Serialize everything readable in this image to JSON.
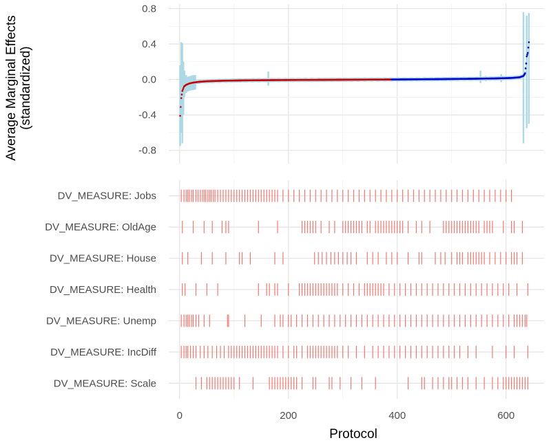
{
  "chart_data": [
    {
      "type": "scatter",
      "panel": "top",
      "title": "",
      "xlabel": "",
      "ylabel": "Average Marginal Effects",
      "ylabel_line2": "(standardized)",
      "ylim": [
        -0.95,
        0.85
      ],
      "y_ticks": [
        -0.8,
        -0.4,
        0.0,
        0.4,
        0.8
      ],
      "y_tick_labels": [
        "-0.8",
        "-0.4",
        "0.0",
        "0.4",
        "0.8"
      ],
      "grid": true,
      "series": [
        {
          "color_negative": "#cc0000",
          "color_positive": "#0000cc",
          "errorbar_color": "#add8e6",
          "curve": [
            [
              1,
              -0.41
            ],
            [
              2,
              -0.31
            ],
            [
              3,
              -0.21
            ],
            [
              5,
              -0.13
            ],
            [
              8,
              -0.08
            ],
            [
              12,
              -0.06
            ],
            [
              18,
              -0.045
            ],
            [
              25,
              -0.035
            ],
            [
              35,
              -0.027
            ],
            [
              50,
              -0.02
            ],
            [
              80,
              -0.014
            ],
            [
              120,
              -0.01
            ],
            [
              170,
              -0.007
            ],
            [
              230,
              -0.005
            ],
            [
              300,
              -0.003
            ],
            [
              360,
              -0.001
            ],
            [
              420,
              0.001
            ],
            [
              480,
              0.004
            ],
            [
              540,
              0.008
            ],
            [
              580,
              0.012
            ],
            [
              610,
              0.017
            ],
            [
              625,
              0.025
            ],
            [
              632,
              0.04
            ],
            [
              635,
              0.07
            ],
            [
              637,
              0.18
            ],
            [
              638,
              0.26
            ],
            [
              640,
              0.3
            ],
            [
              642,
              0.42
            ]
          ],
          "error_spikes": [
            [
              1,
              -0.75,
              0.16
            ],
            [
              3,
              -0.6,
              0.42
            ],
            [
              5,
              -0.72,
              0.41
            ],
            [
              7,
              -0.4,
              0.2
            ],
            [
              9,
              -0.2,
              0.1
            ],
            [
              12,
              -0.15,
              0.05
            ],
            [
              18,
              -0.1,
              0.02
            ],
            [
              28,
              -0.06,
              0.01
            ],
            [
              163,
              -0.07,
              0.09
            ],
            [
              553,
              -0.04,
              0.1
            ],
            [
              563,
              -0.02,
              0.04
            ],
            [
              591,
              -0.03,
              0.06
            ],
            [
              632,
              -0.72,
              0.76
            ],
            [
              638,
              -0.55,
              0.72
            ],
            [
              642,
              -0.5,
              0.75
            ]
          ]
        }
      ]
    },
    {
      "type": "rug",
      "panel": "bottom",
      "xlabel": "Protocol",
      "xlim": [
        -20,
        670
      ],
      "x_ticks": [
        0,
        200,
        400,
        600
      ],
      "x_tick_labels": [
        "0",
        "200",
        "400",
        "600"
      ],
      "mark_color": "#f8766d",
      "categories": [
        "DV_MEASURE: Jobs",
        "DV_MEASURE: OldAge",
        "DV_MEASURE: House",
        "DV_MEASURE: Health",
        "DV_MEASURE: Unemp",
        "DV_MEASURE: IncDiff",
        "DV_MEASURE: Scale"
      ],
      "rows": [
        {
          "category": "DV_MEASURE: Jobs",
          "x": [
            3,
            8,
            12,
            15,
            18,
            22,
            25,
            30,
            34,
            38,
            42,
            45,
            48,
            52,
            55,
            58,
            62,
            65,
            70,
            75,
            80,
            85,
            90,
            95,
            100,
            105,
            110,
            115,
            120,
            125,
            130,
            135,
            140,
            145,
            150,
            155,
            160,
            165,
            170,
            175,
            180,
            190,
            200,
            210,
            220,
            230,
            240,
            250,
            260,
            270,
            280,
            290,
            300,
            310,
            320,
            330,
            340,
            350,
            360,
            370,
            380,
            390,
            400,
            410,
            420,
            430,
            440,
            450,
            460,
            470,
            480,
            490,
            500,
            510,
            520,
            530,
            540,
            550,
            560,
            570,
            580,
            590,
            600,
            610
          ]
        },
        {
          "category": "DV_MEASURE: OldAge",
          "x": [
            5,
            25,
            45,
            60,
            78,
            85,
            90,
            145,
            180,
            225,
            230,
            235,
            240,
            245,
            250,
            260,
            275,
            285,
            300,
            305,
            310,
            315,
            320,
            325,
            330,
            335,
            345,
            350,
            360,
            365,
            370,
            375,
            380,
            385,
            390,
            395,
            400,
            405,
            410,
            420,
            435,
            445,
            460,
            485,
            490,
            495,
            500,
            505,
            510,
            515,
            520,
            525,
            530,
            535,
            540,
            545,
            550,
            560,
            565,
            570,
            575,
            595,
            610,
            615,
            630
          ]
        },
        {
          "category": "DV_MEASURE: House",
          "x": [
            5,
            15,
            40,
            60,
            85,
            110,
            115,
            130,
            175,
            190,
            248,
            255,
            262,
            270,
            278,
            285,
            292,
            300,
            308,
            315,
            325,
            345,
            355,
            365,
            380,
            390,
            400,
            420,
            440,
            445,
            470,
            480,
            488,
            500,
            510,
            515,
            520,
            530,
            535,
            540,
            545,
            550,
            555,
            560,
            570,
            580,
            590,
            600,
            610,
            615,
            620,
            630
          ]
        },
        {
          "category": "DV_MEASURE: Health",
          "x": [
            5,
            10,
            30,
            50,
            70,
            145,
            160,
            165,
            175,
            180,
            200,
            220,
            225,
            230,
            235,
            240,
            245,
            250,
            255,
            260,
            265,
            270,
            275,
            280,
            285,
            290,
            300,
            310,
            320,
            330,
            340,
            345,
            350,
            355,
            360,
            365,
            370,
            375,
            385,
            395,
            405,
            415,
            425,
            435,
            445,
            455,
            465,
            475,
            485,
            495,
            505,
            515,
            525,
            535,
            545,
            555,
            565,
            575,
            585,
            595,
            605,
            620,
            640
          ]
        },
        {
          "category": "DV_MEASURE: Unemp",
          "x": [
            3,
            8,
            12,
            15,
            18,
            22,
            25,
            30,
            35,
            45,
            55,
            88,
            90,
            120,
            150,
            175,
            185,
            190,
            200,
            205,
            215,
            225,
            235,
            245,
            255,
            265,
            275,
            285,
            295,
            305,
            315,
            325,
            335,
            345,
            355,
            365,
            375,
            385,
            395,
            405,
            415,
            425,
            435,
            445,
            455,
            465,
            475,
            485,
            495,
            505,
            515,
            525,
            535,
            545,
            555,
            565,
            575,
            585,
            595,
            605,
            615,
            620,
            625,
            630,
            635,
            638
          ]
        },
        {
          "category": "DV_MEASURE: IncDiff",
          "x": [
            3,
            8,
            12,
            15,
            20,
            25,
            30,
            38,
            45,
            52,
            60,
            68,
            75,
            82,
            90,
            95,
            100,
            105,
            110,
            115,
            120,
            125,
            130,
            135,
            140,
            145,
            150,
            155,
            160,
            165,
            170,
            175,
            180,
            190,
            200,
            210,
            215,
            225,
            235,
            240,
            245,
            250,
            255,
            260,
            265,
            270,
            275,
            280,
            285,
            290,
            300,
            310,
            325,
            340,
            355,
            365,
            375,
            385,
            395,
            405,
            415,
            425,
            435,
            445,
            455,
            465,
            475,
            485,
            495,
            505,
            515,
            530,
            545,
            575,
            600,
            615,
            640
          ]
        },
        {
          "category": "DV_MEASURE: Scale",
          "x": [
            30,
            40,
            50,
            55,
            60,
            65,
            70,
            75,
            80,
            85,
            90,
            95,
            100,
            110,
            135,
            165,
            170,
            175,
            180,
            185,
            190,
            195,
            200,
            205,
            210,
            215,
            225,
            245,
            250,
            275,
            280,
            295,
            315,
            335,
            360,
            420,
            445,
            450,
            465,
            475,
            485,
            495,
            500,
            510,
            520,
            530,
            545,
            560,
            575,
            585,
            595,
            600,
            605,
            610,
            615,
            620,
            625,
            630,
            635,
            640
          ]
        }
      ]
    }
  ]
}
